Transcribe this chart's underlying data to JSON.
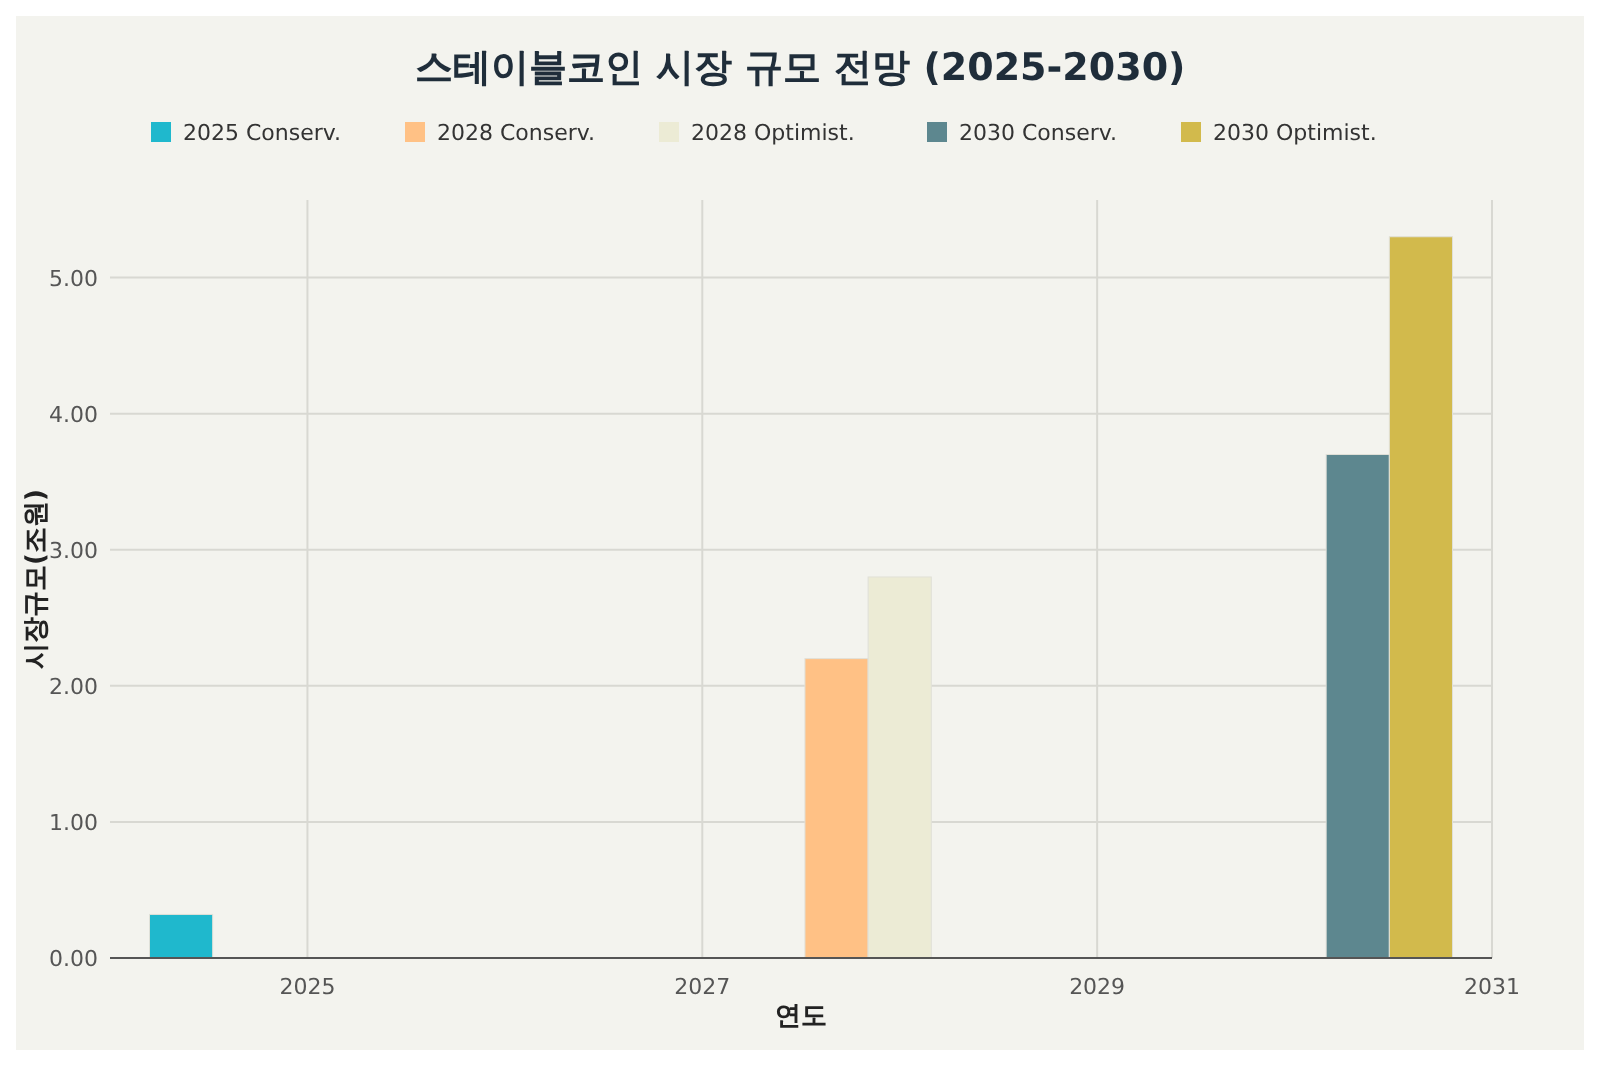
{
  "chart_data": {
    "type": "bar",
    "title": "스테이블코인 시장 규모 전망 (2025-2030)",
    "xlabel": "연도",
    "ylabel": "시장규모(조원)",
    "x": [
      2025,
      2028,
      2030
    ],
    "series": [
      {
        "name": "2025 Conserv.",
        "color": "#1fb8cd",
        "values": [
          0.32,
          null,
          null
        ]
      },
      {
        "name": "2028 Conserv.",
        "color": "#ffc185",
        "values": [
          null,
          2.2,
          null
        ]
      },
      {
        "name": "2028 Optimist.",
        "color": "#ecebd5",
        "values": [
          null,
          2.8,
          null
        ]
      },
      {
        "name": "2030 Conserv.",
        "color": "#5d878f",
        "values": [
          null,
          null,
          3.7
        ]
      },
      {
        "name": "2030 Optimist.",
        "color": "#d2ba4c",
        "values": [
          null,
          null,
          5.3
        ]
      }
    ],
    "xlim": [
      2024,
      2031
    ],
    "xticks": [
      2025,
      2027,
      2029,
      2031
    ],
    "ylim": [
      0,
      5.57
    ],
    "yticks": [
      {
        "value": 0,
        "label": "0.00"
      },
      {
        "value": 1,
        "label": "1.00"
      },
      {
        "value": 2,
        "label": "2.00"
      },
      {
        "value": 3,
        "label": "3.00"
      },
      {
        "value": 4,
        "label": "4.00"
      },
      {
        "value": 5,
        "label": "5.00"
      }
    ],
    "grid": true,
    "legend": "top"
  }
}
